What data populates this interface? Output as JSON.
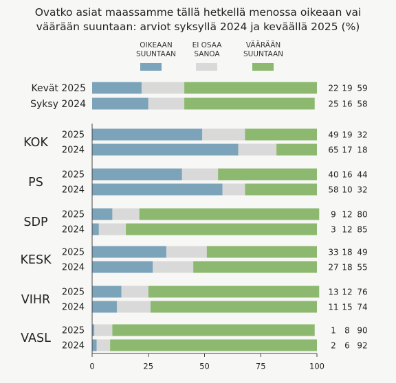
{
  "title": {
    "line1": "Ovatko asiat maassamme tällä hetkellä menossa oikeaan vai",
    "line2": "väärään suuntaan: arviot syksyllä 2024 ja keväällä 2025 (%)"
  },
  "legend": [
    {
      "line1": "OIKEAAN",
      "line2": "SUUNTAAN",
      "color": "#7ba3ba"
    },
    {
      "line1": "EI OSAA",
      "line2": "SANOA",
      "color": "#d9d9d9"
    },
    {
      "line1": "VÄÄRÄÄN",
      "line2": "SUUNTAAN",
      "color": "#8cb96f"
    }
  ],
  "chart_data": {
    "type": "bar",
    "orientation": "horizontal",
    "stacked": true,
    "xlim": [
      0,
      100
    ],
    "xticks": [
      0,
      25,
      50,
      75,
      100
    ],
    "series_names": [
      "OIKEAAN SUUNTAAN",
      "EI OSAA SANOA",
      "VÄÄRÄÄN SUUNTAAN"
    ],
    "colors": [
      "#7ba3ba",
      "#d9d9d9",
      "#8cb96f"
    ],
    "overall": [
      {
        "label": "Kevät 2025",
        "values": [
          22,
          19,
          59
        ]
      },
      {
        "label": "Syksy 2024",
        "values": [
          25,
          16,
          58
        ]
      }
    ],
    "parties": [
      {
        "party": "KOK",
        "rows": [
          {
            "year": "2025",
            "values": [
              49,
              19,
              32
            ]
          },
          {
            "year": "2024",
            "values": [
              65,
              17,
              18
            ]
          }
        ]
      },
      {
        "party": "PS",
        "rows": [
          {
            "year": "2025",
            "values": [
              40,
              16,
              44
            ]
          },
          {
            "year": "2024",
            "values": [
              58,
              10,
              32
            ]
          }
        ]
      },
      {
        "party": "SDP",
        "rows": [
          {
            "year": "2025",
            "values": [
              9,
              12,
              80
            ]
          },
          {
            "year": "2024",
            "values": [
              3,
              12,
              85
            ]
          }
        ]
      },
      {
        "party": "KESK",
        "rows": [
          {
            "year": "2025",
            "values": [
              33,
              18,
              49
            ]
          },
          {
            "year": "2024",
            "values": [
              27,
              18,
              55
            ]
          }
        ]
      },
      {
        "party": "VIHR",
        "rows": [
          {
            "year": "2025",
            "values": [
              13,
              12,
              76
            ]
          },
          {
            "year": "2024",
            "values": [
              11,
              15,
              74
            ]
          }
        ]
      },
      {
        "party": "VASL",
        "rows": [
          {
            "year": "2025",
            "values": [
              1,
              8,
              90
            ]
          },
          {
            "year": "2024",
            "values": [
              2,
              6,
              92
            ]
          }
        ]
      }
    ]
  }
}
